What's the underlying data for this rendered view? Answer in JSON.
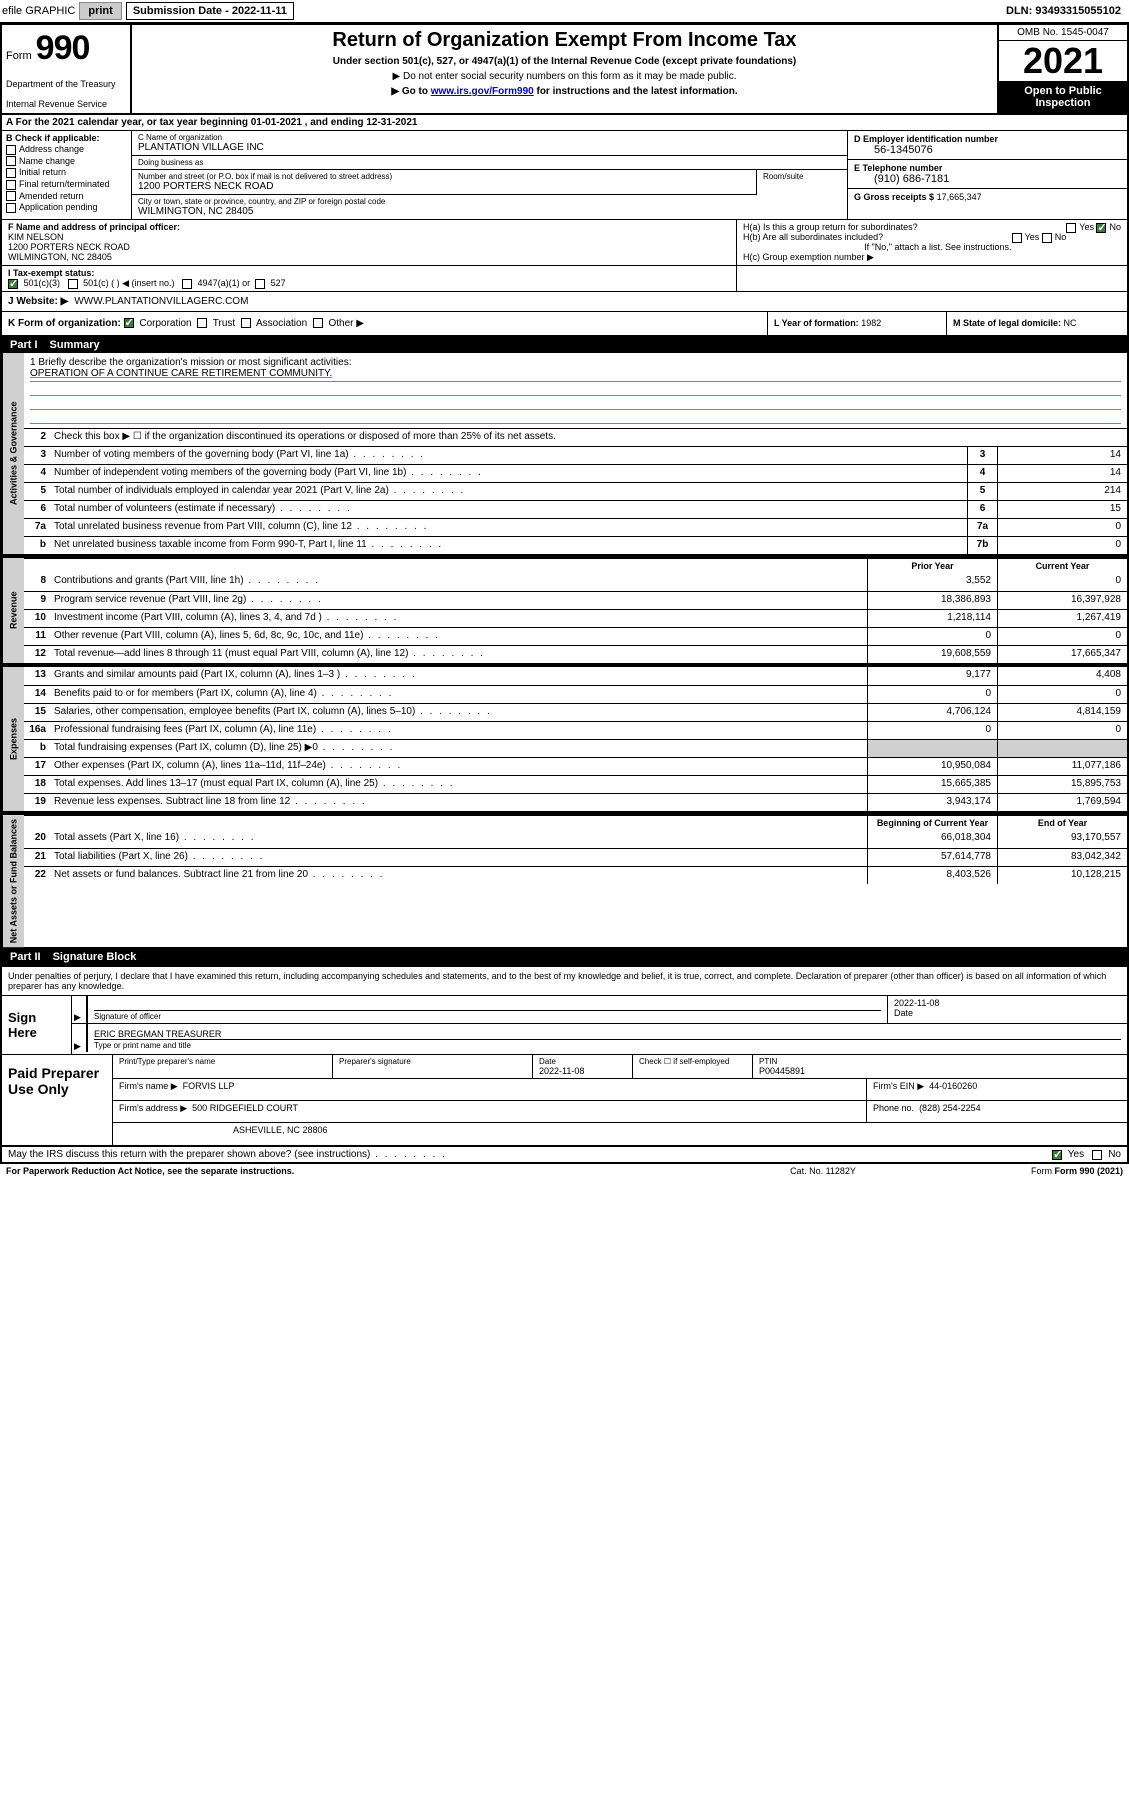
{
  "topbar": {
    "efile": "efile GRAPHIC",
    "print": "print",
    "sub_label": "Submission Date - 2022-11-11",
    "dln": "DLN: 93493315055102"
  },
  "header": {
    "form_word": "Form",
    "form_num": "990",
    "dept": "Department of the Treasury",
    "irs": "Internal Revenue Service",
    "title": "Return of Organization Exempt From Income Tax",
    "sub1": "Under section 501(c), 527, or 4947(a)(1) of the Internal Revenue Code (except private foundations)",
    "sub2": "▶ Do not enter social security numbers on this form as it may be made public.",
    "sub3_pre": "▶ Go to ",
    "sub3_link": "www.irs.gov/Form990",
    "sub3_post": " for instructions and the latest information.",
    "omb": "OMB No. 1545-0047",
    "year": "2021",
    "open_public": "Open to Public Inspection"
  },
  "rowA": "A For the 2021 calendar year, or tax year beginning 01-01-2021   , and ending 12-31-2021",
  "colB": {
    "lead": "B Check if applicable:",
    "items": [
      "Address change",
      "Name change",
      "Initial return",
      "Final return/terminated",
      "Amended return",
      "Application pending"
    ]
  },
  "colC": {
    "name_lbl": "C Name of organization",
    "name_val": "PLANTATION VILLAGE INC",
    "dba_lbl": "Doing business as",
    "dba_val": "",
    "addr_lbl": "Number and street (or P.O. box if mail is not delivered to street address)",
    "addr_val": "1200 PORTERS NECK ROAD",
    "room_lbl": "Room/suite",
    "city_lbl": "City or town, state or province, country, and ZIP or foreign postal code",
    "city_val": "WILMINGTON, NC  28405"
  },
  "colDE": {
    "d_lbl": "D Employer identification number",
    "d_val": "56-1345076",
    "e_lbl": "E Telephone number",
    "e_val": "(910) 686-7181",
    "g_lbl": "G Gross receipts $",
    "g_val": "17,665,347"
  },
  "rowF": {
    "f_lbl": "F Name and address of principal officer:",
    "f_name": "KIM NELSON",
    "f_addr1": "1200 PORTERS NECK ROAD",
    "f_addr2": "WILMINGTON, NC  28405",
    "ha": "H(a)  Is this a group return for subordinates?",
    "ha_yes": "Yes",
    "ha_no": "No",
    "hb": "H(b)  Are all subordinates included?",
    "hb_yes": "Yes",
    "hb_no": "No",
    "hb_note": "If \"No,\" attach a list. See instructions.",
    "hc": "H(c)  Group exemption number ▶"
  },
  "rowI": {
    "lbl": "I  Tax-exempt status:",
    "o1": "501(c)(3)",
    "o2": "501(c) (  ) ◀ (insert no.)",
    "o3": "4947(a)(1) or",
    "o4": "527"
  },
  "rowJ": {
    "lbl": "J  Website: ▶",
    "val": "WWW.PLANTATIONVILLAGERC.COM"
  },
  "rowK": {
    "lbl": "K Form of organization:",
    "o1": "Corporation",
    "o2": "Trust",
    "o3": "Association",
    "o4": "Other ▶",
    "l_lbl": "L Year of formation:",
    "l_val": "1982",
    "m_lbl": "M State of legal domicile:",
    "m_val": "NC"
  },
  "part1": {
    "num": "Part I",
    "title": "Summary"
  },
  "sideLabels": {
    "gov": "Activities & Governance",
    "rev": "Revenue",
    "exp": "Expenses",
    "net": "Net Assets or Fund Balances"
  },
  "mission": {
    "q": "1  Briefly describe the organization's mission or most significant activities:",
    "text": "OPERATION OF A CONTINUE CARE RETIREMENT COMMUNITY."
  },
  "govLines": {
    "l2": "Check this box ▶ ☐  if the organization discontinued its operations or disposed of more than 25% of its net assets.",
    "l3": "Number of voting members of the governing body (Part VI, line 1a)",
    "l3v": "14",
    "l4": "Number of independent voting members of the governing body (Part VI, line 1b)",
    "l4v": "14",
    "l5": "Total number of individuals employed in calendar year 2021 (Part V, line 2a)",
    "l5v": "214",
    "l6": "Total number of volunteers (estimate if necessary)",
    "l6v": "15",
    "l7a": "Total unrelated business revenue from Part VIII, column (C), line 12",
    "l7av": "0",
    "l7b": "Net unrelated business taxable income from Form 990-T, Part I, line 11",
    "l7bv": "0"
  },
  "colHeaders": {
    "prior": "Prior Year",
    "current": "Current Year"
  },
  "revLines": [
    {
      "n": "8",
      "d": "Contributions and grants (Part VIII, line 1h)",
      "p": "3,552",
      "c": "0"
    },
    {
      "n": "9",
      "d": "Program service revenue (Part VIII, line 2g)",
      "p": "18,386,893",
      "c": "16,397,928"
    },
    {
      "n": "10",
      "d": "Investment income (Part VIII, column (A), lines 3, 4, and 7d )",
      "p": "1,218,114",
      "c": "1,267,419"
    },
    {
      "n": "11",
      "d": "Other revenue (Part VIII, column (A), lines 5, 6d, 8c, 9c, 10c, and 11e)",
      "p": "0",
      "c": "0"
    },
    {
      "n": "12",
      "d": "Total revenue—add lines 8 through 11 (must equal Part VIII, column (A), line 12)",
      "p": "19,608,559",
      "c": "17,665,347"
    }
  ],
  "expLines": [
    {
      "n": "13",
      "d": "Grants and similar amounts paid (Part IX, column (A), lines 1–3 )",
      "p": "9,177",
      "c": "4,408"
    },
    {
      "n": "14",
      "d": "Benefits paid to or for members (Part IX, column (A), line 4)",
      "p": "0",
      "c": "0"
    },
    {
      "n": "15",
      "d": "Salaries, other compensation, employee benefits (Part IX, column (A), lines 5–10)",
      "p": "4,706,124",
      "c": "4,814,159"
    },
    {
      "n": "16a",
      "d": "Professional fundraising fees (Part IX, column (A), line 11e)",
      "p": "0",
      "c": "0"
    },
    {
      "n": "b",
      "d": "Total fundraising expenses (Part IX, column (D), line 25) ▶0",
      "p": "",
      "c": "",
      "shade": true
    },
    {
      "n": "17",
      "d": "Other expenses (Part IX, column (A), lines 11a–11d, 11f–24e)",
      "p": "10,950,084",
      "c": "11,077,186"
    },
    {
      "n": "18",
      "d": "Total expenses. Add lines 13–17 (must equal Part IX, column (A), line 25)",
      "p": "15,665,385",
      "c": "15,895,753"
    },
    {
      "n": "19",
      "d": "Revenue less expenses. Subtract line 18 from line 12",
      "p": "3,943,174",
      "c": "1,769,594"
    }
  ],
  "netHeaders": {
    "begin": "Beginning of Current Year",
    "end": "End of Year"
  },
  "netLines": [
    {
      "n": "20",
      "d": "Total assets (Part X, line 16)",
      "p": "66,018,304",
      "c": "93,170,557"
    },
    {
      "n": "21",
      "d": "Total liabilities (Part X, line 26)",
      "p": "57,614,778",
      "c": "83,042,342"
    },
    {
      "n": "22",
      "d": "Net assets or fund balances. Subtract line 21 from line 20",
      "p": "8,403,526",
      "c": "10,128,215"
    }
  ],
  "part2": {
    "num": "Part II",
    "title": "Signature Block"
  },
  "sigIntro": "Under penalties of perjury, I declare that I have examined this return, including accompanying schedules and statements, and to the best of my knowledge and belief, it is true, correct, and complete. Declaration of preparer (other than officer) is based on all information of which preparer has any knowledge.",
  "sign": {
    "label": "Sign Here",
    "sig_lbl": "Signature of officer",
    "date_val": "2022-11-08",
    "date_lbl": "Date",
    "name_val": "ERIC BREGMAN  TREASURER",
    "name_lbl": "Type or print name and title"
  },
  "prep": {
    "label": "Paid Preparer Use Only",
    "h_name": "Print/Type preparer's name",
    "h_sig": "Preparer's signature",
    "h_date": "Date",
    "h_date_val": "2022-11-08",
    "h_check": "Check ☐ if self-employed",
    "h_ptin": "PTIN",
    "h_ptin_val": "P00445891",
    "firm_name_lbl": "Firm's name    ▶",
    "firm_name_val": "FORVIS LLP",
    "firm_ein_lbl": "Firm's EIN ▶",
    "firm_ein_val": "44-0160260",
    "firm_addr_lbl": "Firm's address ▶",
    "firm_addr_val1": "500 RIDGEFIELD COURT",
    "firm_addr_val2": "ASHEVILLE, NC  28806",
    "phone_lbl": "Phone no.",
    "phone_val": "(828) 254-2254"
  },
  "footer": {
    "discuss": "May the IRS discuss this return with the preparer shown above? (see instructions)",
    "yes": "Yes",
    "no": "No",
    "pra": "For Paperwork Reduction Act Notice, see the separate instructions.",
    "cat": "Cat. No. 11282Y",
    "form": "Form 990 (2021)"
  }
}
